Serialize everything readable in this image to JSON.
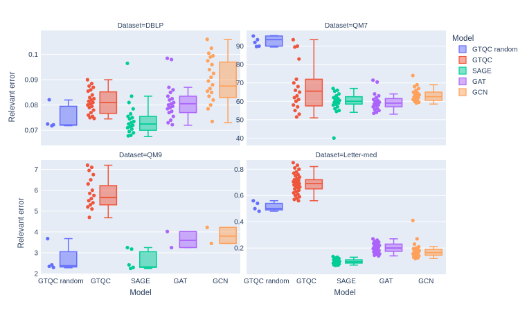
{
  "chart_data": {
    "type": "box",
    "title": "",
    "x_label": "Model",
    "y_label": "Relevant error",
    "categories": [
      "GTQC random",
      "GTQC",
      "SAGE",
      "GAT",
      "GCN"
    ],
    "legend": {
      "title": "Model",
      "position": "right",
      "entries": [
        "GTQC random",
        "GTQC",
        "SAGE",
        "GAT",
        "GCN"
      ]
    },
    "colors": {
      "GTQC random": "#636efa",
      "GTQC": "#ef553b",
      "SAGE": "#00cc96",
      "GAT": "#ab63fa",
      "GCN": "#ffa15a",
      "plot_bg": "#e5ecf6",
      "grid": "#ffffff",
      "text": "#2a3f5f"
    },
    "panels": [
      {
        "title": "Dataset=DBLP",
        "ylim": [
          0.064,
          0.1095
        ],
        "yticks": [
          0.07,
          0.08,
          0.09,
          0.1
        ],
        "ytick_labels": [
          "0.07",
          "0.08",
          "0.09",
          "0.1"
        ],
        "boxes": [
          {
            "model": "GTQC random",
            "min": 0.0718,
            "q1": 0.072,
            "median": 0.0721,
            "q3": 0.0795,
            "max": 0.082,
            "points": [
              0.0725,
              0.0718,
              0.0821,
              0.0722
            ]
          },
          {
            "model": "GTQC",
            "min": 0.0745,
            "q1": 0.0767,
            "median": 0.081,
            "q3": 0.0852,
            "max": 0.09,
            "points": [
              0.09,
              0.0885,
              0.0875,
              0.087,
              0.086,
              0.0855,
              0.084,
              0.083,
              0.0825,
              0.082,
              0.0815,
              0.081,
              0.0805,
              0.08,
              0.0795,
              0.079,
              0.078,
              0.077,
              0.076,
              0.0755,
              0.075,
              0.0747
            ]
          },
          {
            "model": "SAGE",
            "min": 0.0675,
            "q1": 0.07,
            "median": 0.0725,
            "q3": 0.0755,
            "max": 0.0835,
            "points": [
              0.0965,
              0.0835,
              0.081,
              0.0785,
              0.0765,
              0.0755,
              0.075,
              0.0745,
              0.0735,
              0.073,
              0.0725,
              0.072,
              0.0715,
              0.071,
              0.0705,
              0.0695,
              0.069,
              0.068,
              0.0678
            ]
          },
          {
            "model": "GAT",
            "min": 0.072,
            "q1": 0.077,
            "median": 0.0805,
            "q3": 0.0835,
            "max": 0.087,
            "points": [
              0.0985,
              0.098,
              0.087,
              0.086,
              0.085,
              0.0835,
              0.0825,
              0.082,
              0.081,
              0.0805,
              0.08,
              0.0795,
              0.079,
              0.0785,
              0.0775,
              0.077,
              0.0755,
              0.074,
              0.073,
              0.0722
            ]
          },
          {
            "model": "GCN",
            "min": 0.073,
            "q1": 0.083,
            "median": 0.0875,
            "q3": 0.097,
            "max": 0.106,
            "points": [
              0.106,
              0.1025,
              0.1005,
              0.0995,
              0.099,
              0.0975,
              0.096,
              0.094,
              0.0925,
              0.091,
              0.0895,
              0.088,
              0.0865,
              0.0855,
              0.085,
              0.0835,
              0.082,
              0.08,
              0.0785,
              0.0735
            ]
          }
        ]
      },
      {
        "title": "Dataset=QM7",
        "ylim": [
          36,
          98.5
        ],
        "yticks": [
          40,
          50,
          60,
          70,
          80,
          90
        ],
        "ytick_labels": [
          "40",
          "50",
          "60",
          "70",
          "80",
          "90"
        ],
        "boxes": [
          {
            "model": "GTQC random",
            "min": 89.5,
            "q1": 90,
            "median": 93.5,
            "q3": 95.5,
            "max": 95.7,
            "points": [
              95.5,
              93.5,
              92,
              90,
              89.8
            ]
          },
          {
            "model": "GTQC",
            "min": 51,
            "q1": 57.5,
            "median": 65.5,
            "q3": 72,
            "max": 93.5,
            "points": [
              93.5,
              90,
              89.5,
              83,
              72,
              70,
              68,
              66,
              65,
              63,
              62,
              61,
              60,
              58,
              57,
              55,
              53,
              51.5
            ]
          },
          {
            "model": "SAGE",
            "min": 54,
            "q1": 58.5,
            "median": 60,
            "q3": 62.5,
            "max": 67,
            "points": [
              67,
              66,
              65.5,
              64,
              63,
              62,
              61.5,
              61,
              60.5,
              60,
              59.5,
              59,
              58.5,
              58,
              57,
              56,
              55,
              54.5,
              40
            ]
          },
          {
            "model": "GAT",
            "min": 53,
            "q1": 57,
            "median": 59,
            "q3": 61.5,
            "max": 64,
            "points": [
              71.5,
              70.5,
              64,
              63,
              62,
              61,
              60.5,
              60,
              59.5,
              59,
              58.5,
              58,
              57.5,
              57,
              56,
              55.5,
              55,
              54,
              53.5
            ]
          },
          {
            "model": "GCN",
            "min": 58.5,
            "q1": 60.5,
            "median": 62.5,
            "q3": 65,
            "max": 69,
            "points": [
              74,
              69,
              68,
              67,
              66,
              65,
              64.5,
              64,
              63.5,
              63,
              62.5,
              62,
              61.5,
              61,
              60.5,
              60,
              59.5,
              59
            ]
          }
        ]
      },
      {
        "title": "Dataset=QM9",
        "ylim": [
          1.97,
          7.45
        ],
        "yticks": [
          2,
          3,
          4,
          5,
          6,
          7
        ],
        "ytick_labels": [
          "2",
          "3",
          "4",
          "5",
          "6",
          "7"
        ],
        "boxes": [
          {
            "model": "GTQC random",
            "min": 2.28,
            "q1": 2.32,
            "median": 2.38,
            "q3": 3.05,
            "max": 3.68,
            "points": [
              3.68,
              2.42,
              2.35,
              2.3
            ]
          },
          {
            "model": "GTQC",
            "min": 4.68,
            "q1": 5.3,
            "median": 5.65,
            "q3": 6.22,
            "max": 7.2,
            "points": [
              7.2,
              7.1,
              6.95,
              6.75,
              6.5,
              6.3,
              6.0,
              5.85,
              5.75,
              5.6,
              5.5,
              5.4,
              5.3,
              5.2,
              5.1,
              4.7
            ]
          },
          {
            "model": "SAGE",
            "min": 2.25,
            "q1": 2.3,
            "median": 2.32,
            "q3": 3.05,
            "max": 3.25,
            "points": [
              3.25,
              3.18,
              2.42,
              2.3,
              2.25
            ]
          },
          {
            "model": "GAT",
            "min": 3.25,
            "q1": 3.25,
            "median": 3.6,
            "q3": 4.02,
            "max": 4.02,
            "points": [
              4.02,
              3.25
            ]
          },
          {
            "model": "GCN",
            "min": 3.45,
            "q1": 3.45,
            "median": 3.8,
            "q3": 4.22,
            "max": 4.22,
            "points": [
              4.22,
              3.45
            ]
          }
        ]
      },
      {
        "title": "Dataset=Letter-med",
        "ylim": [
          0.0,
          0.87
        ],
        "yticks": [
          0.2,
          0.4,
          0.6,
          0.8
        ],
        "ytick_labels": [
          "0.2",
          "0.4",
          "0.6",
          "0.8"
        ],
        "boxes": [
          {
            "model": "GTQC random",
            "min": 0.48,
            "q1": 0.49,
            "median": 0.5,
            "q3": 0.54,
            "max": 0.56,
            "points": [
              0.56,
              0.54,
              0.5,
              0.48
            ]
          },
          {
            "model": "GTQC",
            "min": 0.56,
            "q1": 0.65,
            "median": 0.69,
            "q3": 0.72,
            "max": 0.82,
            "points": [
              0.85,
              0.83,
              0.81,
              0.8,
              0.78,
              0.77,
              0.76,
              0.75,
              0.74,
              0.73,
              0.72,
              0.715,
              0.71,
              0.705,
              0.7,
              0.695,
              0.69,
              0.685,
              0.68,
              0.675,
              0.67,
              0.665,
              0.66,
              0.65,
              0.64,
              0.63,
              0.62,
              0.61,
              0.6,
              0.59,
              0.58,
              0.57,
              0.56
            ]
          },
          {
            "model": "SAGE",
            "min": 0.07,
            "q1": 0.085,
            "median": 0.095,
            "q3": 0.11,
            "max": 0.13,
            "points": [
              0.135,
              0.13,
              0.125,
              0.12,
              0.115,
              0.11,
              0.105,
              0.1,
              0.098,
              0.095,
              0.092,
              0.09,
              0.088,
              0.085,
              0.082,
              0.08,
              0.078,
              0.075,
              0.072,
              0.07,
              0.068
            ]
          },
          {
            "model": "GAT",
            "min": 0.14,
            "q1": 0.175,
            "median": 0.2,
            "q3": 0.23,
            "max": 0.27,
            "points": [
              0.27,
              0.26,
              0.25,
              0.245,
              0.24,
              0.235,
              0.23,
              0.225,
              0.22,
              0.215,
              0.21,
              0.205,
              0.2,
              0.195,
              0.19,
              0.185,
              0.18,
              0.175,
              0.17,
              0.165,
              0.16,
              0.155,
              0.15,
              0.145,
              0.14
            ]
          },
          {
            "model": "GCN",
            "min": 0.12,
            "q1": 0.145,
            "median": 0.165,
            "q3": 0.19,
            "max": 0.21,
            "points": [
              0.41,
              0.27,
              0.23,
              0.21,
              0.2,
              0.195,
              0.19,
              0.185,
              0.18,
              0.175,
              0.17,
              0.165,
              0.16,
              0.155,
              0.15,
              0.145,
              0.14,
              0.135,
              0.13,
              0.125,
              0.12
            ]
          }
        ]
      }
    ]
  }
}
